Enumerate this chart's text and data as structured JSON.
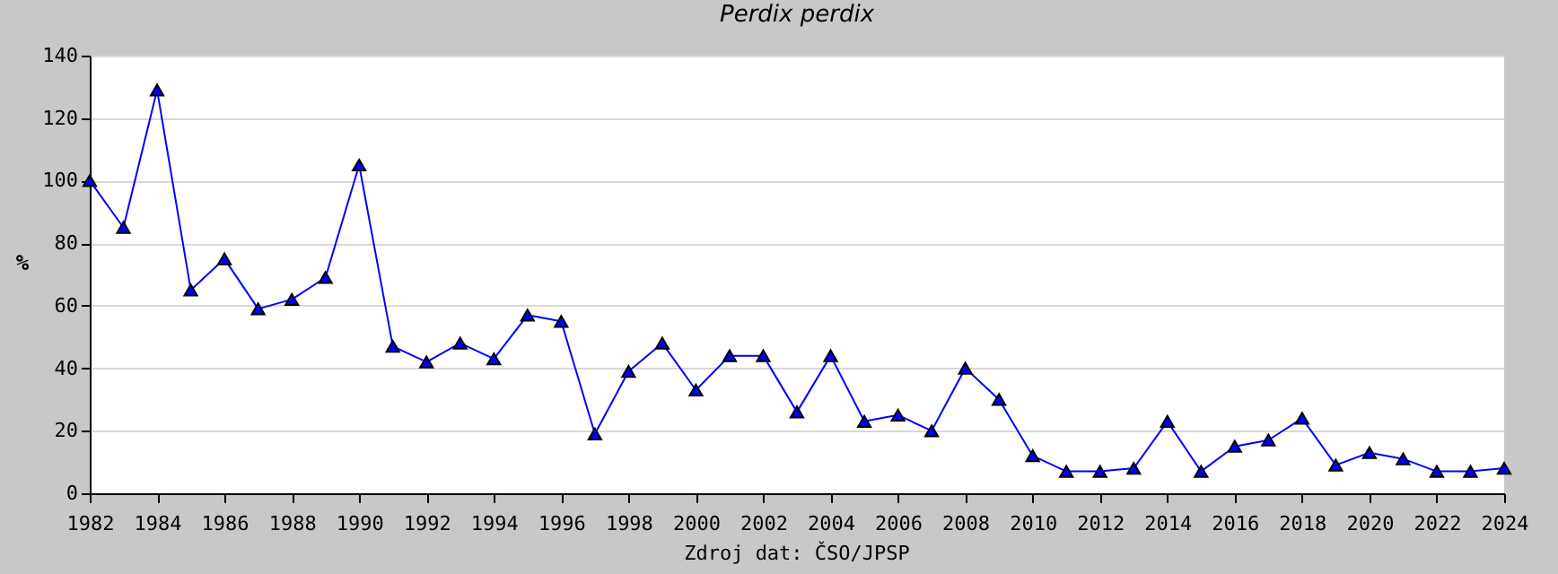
{
  "chart_data": {
    "type": "line",
    "title": "Perdix perdix",
    "ylabel": "%",
    "annotations": [
      "Zdroj dat: ČSO/JPSP"
    ],
    "x": [
      1982,
      1983,
      1984,
      1985,
      1986,
      1987,
      1988,
      1989,
      1990,
      1991,
      1992,
      1993,
      1994,
      1995,
      1996,
      1997,
      1998,
      1999,
      2000,
      2001,
      2002,
      2003,
      2004,
      2005,
      2006,
      2007,
      2008,
      2009,
      2010,
      2011,
      2012,
      2013,
      2014,
      2015,
      2016,
      2017,
      2018,
      2019,
      2020,
      2021,
      2022,
      2023,
      2024
    ],
    "series": [
      {
        "color": "#0000ff",
        "values": [
          100,
          85,
          129,
          65,
          75,
          59,
          62,
          69,
          105,
          47,
          42,
          48,
          43,
          57,
          55,
          19,
          39,
          48,
          33,
          44,
          44,
          26,
          44,
          23,
          25,
          20,
          40,
          30,
          12,
          7,
          7,
          8,
          23,
          7,
          15,
          17,
          24,
          9,
          13,
          11,
          7,
          7,
          8
        ]
      }
    ],
    "xlim": [
      1982,
      2024
    ],
    "xticks": [
      1982,
      1984,
      1986,
      1988,
      1990,
      1992,
      1994,
      1996,
      1998,
      2000,
      2002,
      2004,
      2006,
      2008,
      2010,
      2012,
      2014,
      2016,
      2018,
      2020,
      2022,
      2024
    ],
    "ylim": [
      0,
      140
    ],
    "yticks": [
      0,
      20,
      40,
      60,
      80,
      100,
      120,
      140
    ],
    "grid": "y",
    "marker": "triangle",
    "line_style": "solid",
    "legend": false
  }
}
